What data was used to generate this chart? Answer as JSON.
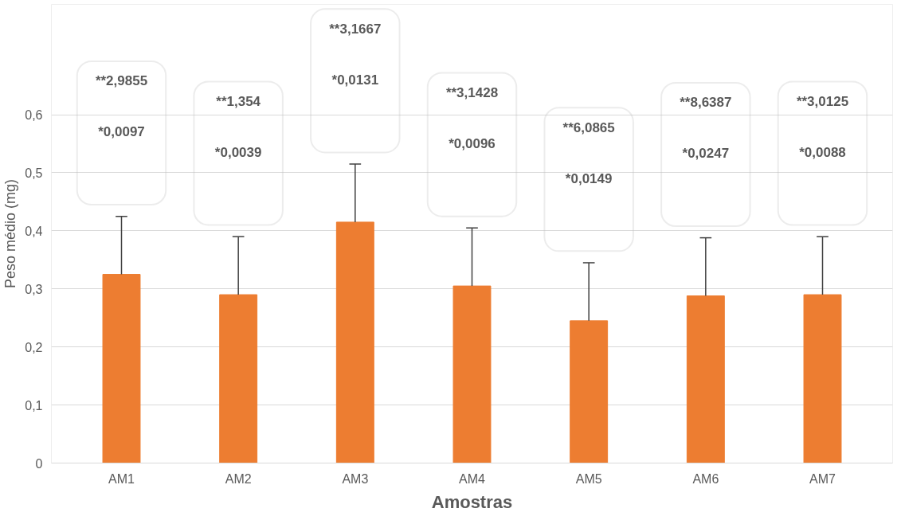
{
  "chart_data": {
    "type": "bar",
    "categories": [
      "AM1",
      "AM2",
      "AM3",
      "AM4",
      "AM5",
      "AM6",
      "AM7"
    ],
    "values": [
      0.325,
      0.29,
      0.415,
      0.305,
      0.245,
      0.288,
      0.29
    ],
    "errors": [
      [
        0.325,
        0.425
      ],
      [
        0.29,
        0.39
      ],
      [
        0.415,
        0.515
      ],
      [
        0.305,
        0.405
      ],
      [
        0.245,
        0.345
      ],
      [
        0.288,
        0.388
      ],
      [
        0.29,
        0.39
      ]
    ],
    "color": "#ed7d31",
    "xlabel": "Amostras",
    "ylabel": "Peso médio (mg)",
    "ylim": [
      0,
      0.79
    ],
    "yticks": [
      {
        "value": 0,
        "label": "0"
      },
      {
        "value": 0.1,
        "label": "0,1"
      },
      {
        "value": 0.2,
        "label": "0,2"
      },
      {
        "value": 0.3,
        "label": "0,3"
      },
      {
        "value": 0.4,
        "label": "0,4"
      },
      {
        "value": 0.5,
        "label": "0,5"
      },
      {
        "value": 0.6,
        "label": "0,6"
      }
    ],
    "grid": "y",
    "annotations": [
      "**2,9855",
      "*0,0097",
      "**1,354",
      "*0,0039",
      "**3,1667",
      "*0,0131",
      "**3,1428",
      "*0,0096",
      "**6,0865",
      "*0,0149",
      "**8,6387",
      "*0,0247",
      "**3,0125",
      "*0,0088"
    ]
  }
}
